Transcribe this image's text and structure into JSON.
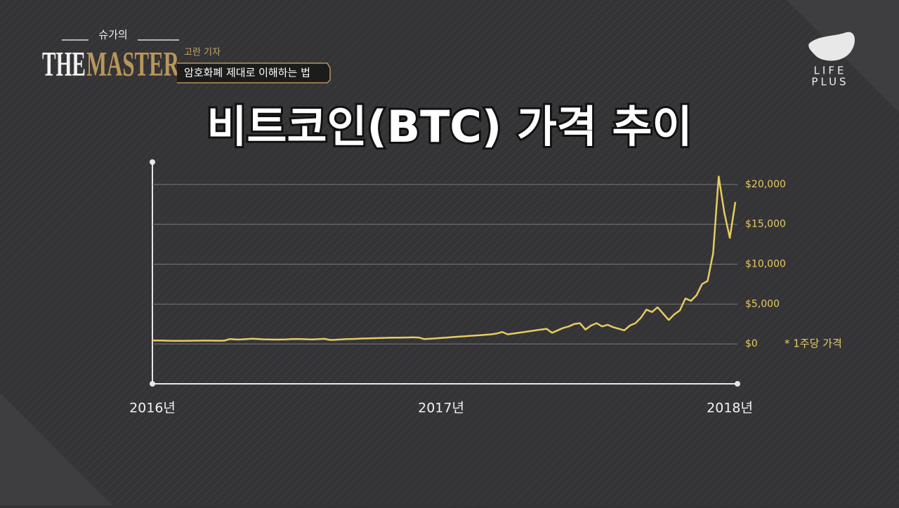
{
  "branding": {
    "show": "슈가의",
    "the": "THE",
    "master": "MASTER",
    "reporter": "고란 기자",
    "subtitle": "암호화폐 제대로 이해하는 법",
    "logo_top": "LIFE",
    "logo_bottom": "PLUS"
  },
  "chart_data": {
    "type": "line",
    "title": "비트코인(BTC) 가격 추이",
    "annotation": "* 1주당 가격",
    "color": "#e6cb62",
    "grid": true,
    "categories": [
      "2016년",
      null,
      null,
      null,
      null,
      null,
      null,
      null,
      null,
      null,
      null,
      null,
      null,
      null,
      null,
      null,
      null,
      null,
      null,
      null,
      null,
      null,
      null,
      null,
      null,
      null,
      null,
      null,
      null,
      null,
      null,
      null,
      null,
      null,
      null,
      null,
      null,
      null,
      null,
      null,
      null,
      null,
      null,
      null,
      null,
      null,
      null,
      null,
      null,
      null,
      null,
      null,
      "2017년",
      null,
      null,
      null,
      null,
      null,
      null,
      null,
      null,
      null,
      null,
      null,
      null,
      null,
      null,
      null,
      null,
      null,
      null,
      null,
      null,
      null,
      null,
      null,
      null,
      null,
      null,
      null,
      null,
      null,
      null,
      null,
      null,
      null,
      null,
      null,
      null,
      null,
      null,
      null,
      null,
      null,
      null,
      null,
      null,
      null,
      null,
      null,
      null,
      null,
      null,
      null,
      "2018년",
      null
    ],
    "values": [
      430,
      430,
      420,
      400,
      390,
      380,
      380,
      400,
      410,
      420,
      415,
      410,
      400,
      420,
      620,
      550,
      560,
      600,
      650,
      620,
      580,
      560,
      540,
      550,
      560,
      600,
      620,
      600,
      580,
      570,
      600,
      640,
      500,
      520,
      560,
      600,
      620,
      650,
      680,
      700,
      720,
      740,
      760,
      780,
      790,
      800,
      810,
      820,
      800,
      600,
      650,
      700,
      750,
      800,
      850,
      900,
      950,
      1000,
      1050,
      1100,
      1150,
      1200,
      1300,
      1500,
      1200,
      1300,
      1400,
      1500,
      1600,
      1700,
      1800,
      1900,
      1400,
      1700,
      2000,
      2200,
      2500,
      2600,
      1800,
      2300,
      2600,
      2200,
      2400,
      2100,
      1900,
      1700,
      2300,
      2600,
      3300,
      4300,
      4000,
      4600,
      3800,
      3000,
      3700,
      4200,
      5700,
      5400,
      6100,
      7500,
      7900,
      11400,
      21000,
      16500,
      13300,
      17800
    ],
    "ylim": [
      -5000,
      22800
    ],
    "yticks": [
      {
        "value": 0,
        "label": "$0"
      },
      {
        "value": 5000,
        "label": "$5,000"
      },
      {
        "value": 10000,
        "label": "$10,000"
      },
      {
        "value": 15000,
        "label": "$15,000"
      },
      {
        "value": 20000,
        "label": "$20,000"
      }
    ]
  }
}
